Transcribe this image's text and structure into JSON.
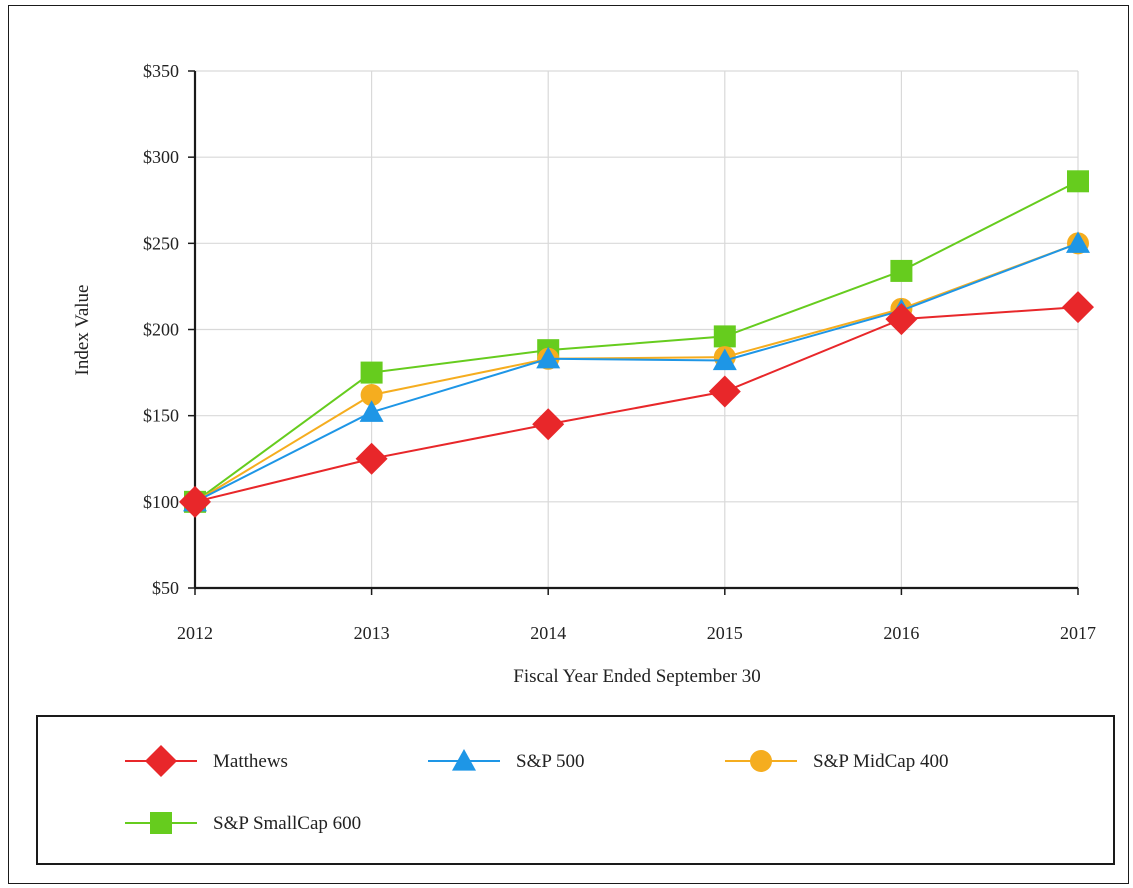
{
  "chart_data": {
    "type": "line",
    "x": [
      "2012",
      "2013",
      "2014",
      "2015",
      "2016",
      "2017"
    ],
    "xlabel": "Fiscal Year Ended September 30",
    "ylabel": "Index Value",
    "ylim": [
      50,
      350
    ],
    "y_ticks": [
      50,
      100,
      150,
      200,
      250,
      300,
      350
    ],
    "y_tick_labels": [
      "$50",
      "$100",
      "$150",
      "$200",
      "$250",
      "$300",
      "$350"
    ],
    "grid": true,
    "legend_position": "bottom",
    "series": [
      {
        "name": "Matthews",
        "color": "#e8272a",
        "marker": "diamond",
        "values": [
          100,
          125,
          145,
          164,
          206,
          213
        ]
      },
      {
        "name": "S&P 500",
        "color": "#1e96e6",
        "marker": "triangle",
        "values": [
          100,
          152,
          183,
          182,
          211,
          250
        ]
      },
      {
        "name": "S&P MidCap 400",
        "color": "#f5ad1f",
        "marker": "circle",
        "values": [
          100,
          162,
          183,
          184,
          212,
          250
        ]
      },
      {
        "name": "S&P SmallCap 600",
        "color": "#66cc1e",
        "marker": "square",
        "values": [
          100,
          175,
          188,
          196,
          234,
          286
        ]
      }
    ]
  }
}
